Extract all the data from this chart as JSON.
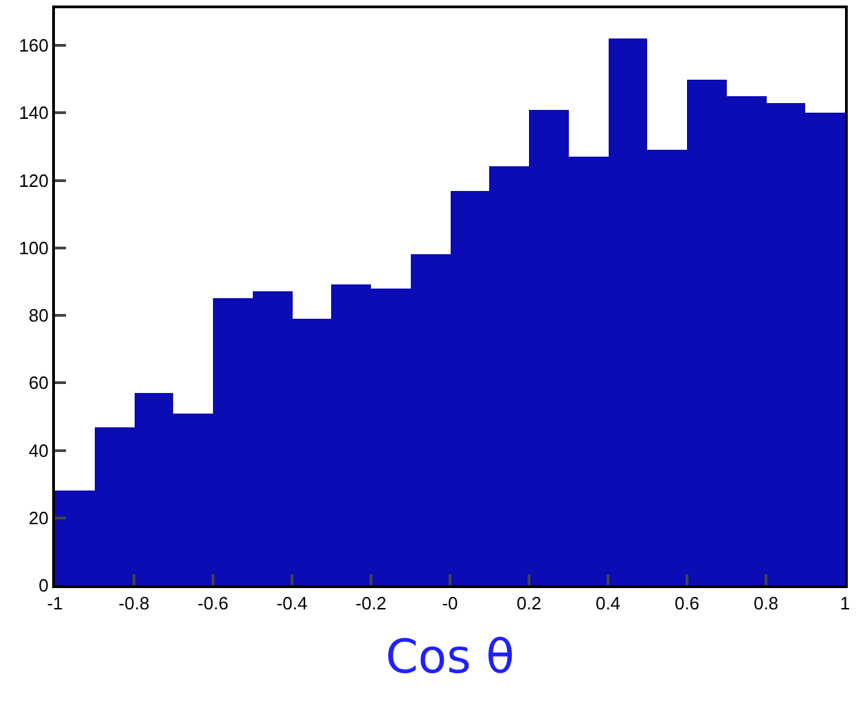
{
  "chart_data": {
    "type": "histogram",
    "xlabel": "Cos θ",
    "bins": [
      -1,
      -0.9,
      -0.8,
      -0.7,
      -0.6,
      -0.5,
      -0.4,
      -0.3,
      -0.2,
      -0.1,
      0,
      0.1,
      0.2,
      0.3,
      0.4,
      0.5,
      0.6,
      0.7,
      0.8,
      0.9,
      1
    ],
    "values": [
      28,
      47,
      57,
      51,
      85,
      87,
      79,
      89,
      88,
      98,
      117,
      124,
      141,
      127,
      162,
      129,
      150,
      145,
      143,
      140
    ],
    "color": "#0c0cb4",
    "xlim": [
      -1,
      1
    ],
    "xticks": [
      -1,
      -0.8,
      -0.6,
      -0.4,
      -0.2,
      {
        "value": 0,
        "label": "-0"
      },
      0.2,
      0.4,
      0.6,
      0.8,
      1
    ],
    "ylim": [
      0,
      171
    ],
    "yticks": [
      0,
      20,
      40,
      60,
      80,
      100,
      120,
      140,
      160
    ]
  }
}
